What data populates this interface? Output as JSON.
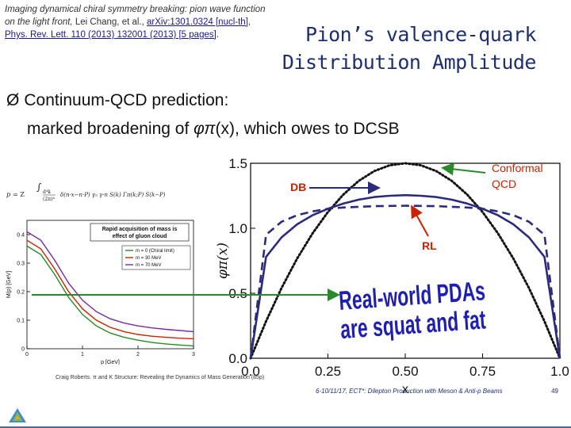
{
  "reference": {
    "line1": "Imaging dynamical chiral symmetry breaking: pion wave function",
    "line2_prefix": "on the light front, ",
    "authors": "Lei Chang, et al.",
    "sep1": ", ",
    "arxiv": "arXiv:1301.0324 [nucl-th]",
    "sep2": ",",
    "journal": "Phys. Rev. Lett. 110 (2013) 132001 (2013) [5 pages]",
    "end": "."
  },
  "title": {
    "line1": "Pion’s valence-quark",
    "line2": "Distribution Amplitude"
  },
  "bullet": {
    "marker": "Ø",
    "line1": "Continuum-QCD prediction:",
    "line2_prefix": "marked broadening of ",
    "phi": "φπ",
    "line2_suffix": "(x), which owes to DCSB"
  },
  "annotations": {
    "conformal_l1": "Conformal",
    "conformal_l2": "QCD",
    "db": "DB",
    "rl": "RL",
    "realworld_l1": "Real-world PDAs",
    "realworld_l2": "are squat and fat"
  },
  "colors": {
    "navy": "#2b2b7a",
    "red": "#cc2200",
    "green": "#2a8a2a",
    "title": "#1f2f6e"
  },
  "chart_data": [
    {
      "type": "line",
      "xlabel": "x",
      "ylabel": "φπ(x)",
      "xlim": [
        0,
        1
      ],
      "ylim": [
        0,
        1.5
      ],
      "xticks": [
        "0.0",
        "0.25",
        "0.50",
        "0.75",
        "1.0"
      ],
      "yticks": [
        "0.0",
        "0.5",
        "1.0",
        "1.5"
      ],
      "x": [
        0,
        0.05,
        0.1,
        0.15,
        0.2,
        0.25,
        0.3,
        0.35,
        0.4,
        0.45,
        0.5,
        0.55,
        0.6,
        0.65,
        0.7,
        0.75,
        0.8,
        0.85,
        0.9,
        0.95,
        1.0
      ],
      "series": [
        {
          "name": "Conformal QCD",
          "style": "dotted",
          "values": [
            0,
            0.285,
            0.54,
            0.765,
            0.96,
            1.125,
            1.26,
            1.365,
            1.44,
            1.485,
            1.5,
            1.485,
            1.44,
            1.365,
            1.26,
            1.125,
            0.96,
            0.765,
            0.54,
            0.285,
            0
          ]
        },
        {
          "name": "DB",
          "style": "solid",
          "values": [
            0,
            0.78,
            0.93,
            1.03,
            1.1,
            1.15,
            1.19,
            1.22,
            1.24,
            1.25,
            1.255,
            1.25,
            1.24,
            1.22,
            1.19,
            1.15,
            1.1,
            1.03,
            0.93,
            0.78,
            0
          ]
        },
        {
          "name": "RL",
          "style": "dashed",
          "values": [
            0,
            0.95,
            1.05,
            1.1,
            1.13,
            1.15,
            1.16,
            1.165,
            1.17,
            1.172,
            1.173,
            1.172,
            1.17,
            1.165,
            1.16,
            1.15,
            1.13,
            1.1,
            1.05,
            0.95,
            0
          ]
        }
      ]
    },
    {
      "type": "line",
      "xlabel": "p [GeV]",
      "ylabel": "M(p) [GeV]",
      "xlim": [
        0,
        3
      ],
      "ylim": [
        0,
        0.45
      ],
      "xticks": [
        "0",
        "1",
        "2",
        "3"
      ],
      "yticks": [
        "0",
        "0.1",
        "0.2",
        "0.3",
        "0.4"
      ],
      "legend_position": "top-right",
      "annotation_l1": "Rapid acquisition of mass is",
      "annotation_l2": "effect of gluon cloud",
      "x": [
        0,
        0.25,
        0.5,
        0.75,
        1.0,
        1.25,
        1.5,
        1.75,
        2.0,
        2.25,
        2.5,
        2.75,
        3.0
      ],
      "series": [
        {
          "name": "m = 0 (Chiral limit)",
          "values": [
            0.36,
            0.33,
            0.26,
            0.18,
            0.12,
            0.08,
            0.055,
            0.04,
            0.03,
            0.022,
            0.017,
            0.013,
            0.01
          ]
        },
        {
          "name": "m = 30 MeV",
          "values": [
            0.38,
            0.35,
            0.28,
            0.2,
            0.14,
            0.1,
            0.075,
            0.06,
            0.05,
            0.044,
            0.04,
            0.037,
            0.035
          ]
        },
        {
          "name": "m = 70 MeV",
          "values": [
            0.41,
            0.38,
            0.31,
            0.23,
            0.17,
            0.13,
            0.105,
            0.09,
            0.08,
            0.073,
            0.068,
            0.064,
            0.06
          ]
        }
      ]
    }
  ],
  "footer": {
    "left": "Craig Roberts. π and K Structure: Revealing the Dynamics of Mass Generation (85p)",
    "right": "6-10/11/17, ECT*: Dilepton Production with Meson & Anti-p Beams",
    "page": "49"
  }
}
